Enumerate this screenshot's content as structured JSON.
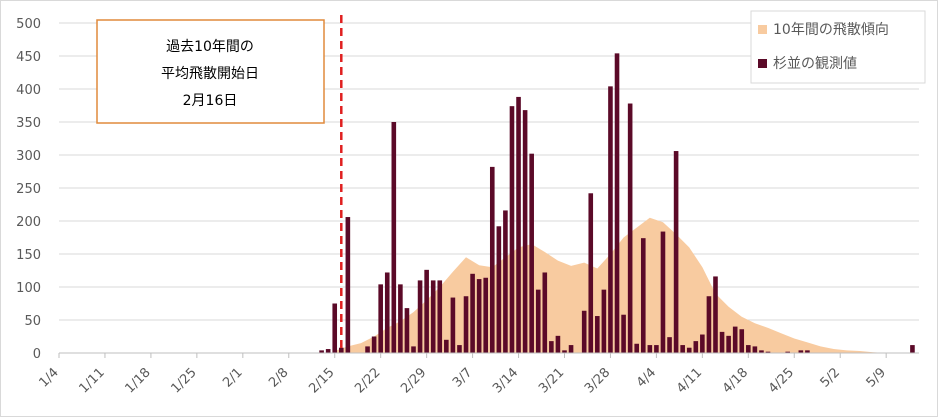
{
  "chart_data": {
    "type": "bar",
    "title": "",
    "xlabel": "",
    "ylabel": "",
    "ylim": [
      0,
      500
    ],
    "yticks": [
      "0",
      "50",
      "100",
      "150",
      "200",
      "250",
      "300",
      "350",
      "400",
      "450",
      "500"
    ],
    "xticks": [
      "1/4",
      "1/11",
      "1/18",
      "1/25",
      "2/1",
      "2/8",
      "2/15",
      "2/22",
      "2/29",
      "3/7",
      "3/14",
      "3/21",
      "3/28",
      "4/4",
      "4/11",
      "4/18",
      "4/25",
      "5/2",
      "5/9"
    ],
    "x_domain": {
      "start": "1/4",
      "days": 131
    },
    "grid": true,
    "legend_position": "top-right",
    "colors": {
      "trend": "#F8CBA0",
      "bars": "#5B0A28",
      "marker": "#E02020",
      "annotation_border": "#E08A3C",
      "grid": "#d9d9d9"
    },
    "annotation": {
      "lines": [
        "過去10年間の",
        "平均飛散開始日",
        "2月16日"
      ],
      "marker_date": "2/16"
    },
    "series": [
      {
        "name": "10年間の飛散傾向",
        "kind": "area",
        "x": [
          "2/15",
          "2/17",
          "2/19",
          "2/21",
          "2/23",
          "2/25",
          "2/27",
          "2/29",
          "3/2",
          "3/4",
          "3/6",
          "3/8",
          "3/10",
          "3/12",
          "3/14",
          "3/16",
          "3/18",
          "3/20",
          "3/22",
          "3/24",
          "3/26",
          "3/28",
          "3/30",
          "4/1",
          "4/3",
          "4/5",
          "4/7",
          "4/9",
          "4/11",
          "4/13",
          "4/15",
          "4/17",
          "4/19",
          "4/21",
          "4/23",
          "4/25",
          "4/27",
          "4/29",
          "5/1",
          "5/3",
          "5/5",
          "5/7",
          "5/9"
        ],
        "values": [
          3,
          10,
          15,
          25,
          38,
          48,
          62,
          80,
          100,
          123,
          145,
          133,
          130,
          145,
          160,
          165,
          153,
          140,
          132,
          137,
          128,
          150,
          175,
          190,
          205,
          198,
          180,
          160,
          130,
          90,
          70,
          55,
          45,
          38,
          30,
          22,
          16,
          10,
          6,
          4,
          3,
          1,
          0
        ]
      },
      {
        "name": "杉並の観測値",
        "kind": "bar",
        "x": [
          "2/13",
          "2/14",
          "2/15",
          "2/16",
          "2/17",
          "2/20",
          "2/21",
          "2/22",
          "2/23",
          "2/24",
          "2/25",
          "2/26",
          "2/27",
          "2/28",
          "2/29",
          "3/1",
          "3/2",
          "3/3",
          "3/4",
          "3/5",
          "3/6",
          "3/7",
          "3/8",
          "3/9",
          "3/10",
          "3/11",
          "3/12",
          "3/13",
          "3/14",
          "3/15",
          "3/16",
          "3/17",
          "3/18",
          "3/19",
          "3/20",
          "3/21",
          "3/22",
          "3/23",
          "3/24",
          "3/25",
          "3/26",
          "3/27",
          "3/28",
          "3/29",
          "3/30",
          "3/31",
          "4/1",
          "4/2",
          "4/3",
          "4/4",
          "4/5",
          "4/6",
          "4/7",
          "4/8",
          "4/9",
          "4/10",
          "4/11",
          "4/12",
          "4/13",
          "4/14",
          "4/15",
          "4/16",
          "4/17",
          "4/18",
          "4/19",
          "4/20",
          "4/21",
          "4/22",
          "4/23",
          "4/24",
          "4/26",
          "4/27",
          "5/13"
        ],
        "values": [
          4,
          6,
          75,
          8,
          206,
          10,
          25,
          104,
          122,
          350,
          104,
          68,
          10,
          110,
          126,
          110,
          110,
          20,
          84,
          12,
          86,
          120,
          112,
          114,
          282,
          192,
          216,
          374,
          388,
          368,
          302,
          96,
          122,
          18,
          26,
          4,
          12,
          0,
          64,
          242,
          56,
          96,
          404,
          454,
          58,
          378,
          14,
          174,
          12,
          12,
          184,
          24,
          306,
          12,
          8,
          18,
          28,
          86,
          116,
          32,
          26,
          40,
          36,
          12,
          10,
          4,
          2,
          0,
          0,
          2,
          4,
          4,
          12
        ]
      }
    ]
  }
}
